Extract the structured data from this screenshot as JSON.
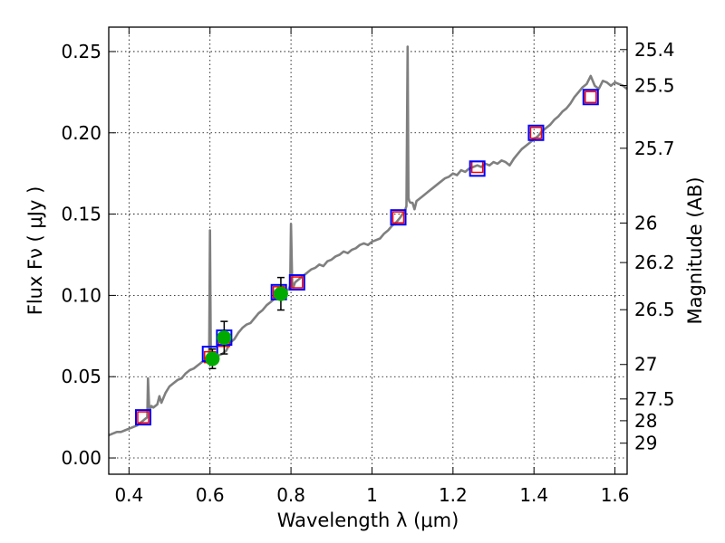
{
  "chart_data": {
    "type": "line",
    "xlabel": "Wavelength  λ (μm)",
    "ylabel": "Flux  Fν ( μJy )",
    "y2label": "Magnitude (AB)",
    "xlim": [
      0.35,
      1.63
    ],
    "ylim": [
      -0.01,
      0.265
    ],
    "grid": true,
    "x_ticks": [
      0.4,
      0.6,
      0.8,
      1.0,
      1.2,
      1.4,
      1.6
    ],
    "x_tick_labels": [
      "0.4",
      "0.6",
      "0.8",
      "1",
      "1.2",
      "1.4",
      "1.6"
    ],
    "y_ticks": [
      0.0,
      0.05,
      0.1,
      0.15,
      0.2,
      0.25
    ],
    "y_tick_labels": [
      "0.00",
      "0.05",
      "0.10",
      "0.15",
      "0.20",
      "0.25"
    ],
    "y2_ticks": [
      {
        "label": "25.4",
        "flux": 0.2512
      },
      {
        "label": "25.5",
        "flux": 0.2291
      },
      {
        "label": "25.7",
        "flux": 0.1905
      },
      {
        "label": "26",
        "flux": 0.1445
      },
      {
        "label": "26.2",
        "flux": 0.1202
      },
      {
        "label": "26.5",
        "flux": 0.0912
      },
      {
        "label": "27",
        "flux": 0.0575
      },
      {
        "label": "27.5",
        "flux": 0.0363
      },
      {
        "label": "28",
        "flux": 0.0229
      },
      {
        "label": "29",
        "flux": 0.0091
      }
    ],
    "series": [
      {
        "style": "model-spectrum",
        "color": "#7f7f7f",
        "x": [
          0.35,
          0.36,
          0.37,
          0.38,
          0.39,
          0.4,
          0.41,
          0.42,
          0.425,
          0.43,
          0.435,
          0.44,
          0.445,
          0.447,
          0.45,
          0.455,
          0.46,
          0.47,
          0.475,
          0.48,
          0.49,
          0.5,
          0.51,
          0.52,
          0.53,
          0.54,
          0.55,
          0.56,
          0.57,
          0.58,
          0.59,
          0.595,
          0.598,
          0.6,
          0.602,
          0.605,
          0.61,
          0.62,
          0.63,
          0.64,
          0.65,
          0.66,
          0.67,
          0.68,
          0.69,
          0.7,
          0.71,
          0.72,
          0.73,
          0.74,
          0.75,
          0.76,
          0.77,
          0.78,
          0.79,
          0.795,
          0.798,
          0.8,
          0.803,
          0.806,
          0.81,
          0.82,
          0.83,
          0.84,
          0.85,
          0.86,
          0.87,
          0.88,
          0.89,
          0.9,
          0.91,
          0.92,
          0.93,
          0.94,
          0.95,
          0.96,
          0.97,
          0.98,
          0.99,
          1.0,
          1.01,
          1.02,
          1.03,
          1.04,
          1.05,
          1.06,
          1.07,
          1.075,
          1.08,
          1.085,
          1.088,
          1.09,
          1.092,
          1.095,
          1.1,
          1.105,
          1.11,
          1.12,
          1.13,
          1.14,
          1.15,
          1.16,
          1.17,
          1.18,
          1.19,
          1.2,
          1.21,
          1.22,
          1.23,
          1.24,
          1.25,
          1.26,
          1.27,
          1.28,
          1.29,
          1.3,
          1.31,
          1.32,
          1.33,
          1.34,
          1.35,
          1.36,
          1.37,
          1.38,
          1.39,
          1.4,
          1.41,
          1.42,
          1.43,
          1.44,
          1.45,
          1.46,
          1.47,
          1.48,
          1.49,
          1.5,
          1.51,
          1.52,
          1.53,
          1.54,
          1.55,
          1.56,
          1.57,
          1.58,
          1.59,
          1.6,
          1.61,
          1.62,
          1.63
        ],
        "values": [
          0.014,
          0.015,
          0.016,
          0.016,
          0.017,
          0.018,
          0.019,
          0.02,
          0.021,
          0.022,
          0.023,
          0.024,
          0.025,
          0.049,
          0.029,
          0.032,
          0.031,
          0.033,
          0.038,
          0.034,
          0.04,
          0.044,
          0.046,
          0.048,
          0.049,
          0.052,
          0.054,
          0.055,
          0.057,
          0.059,
          0.06,
          0.061,
          0.063,
          0.14,
          0.064,
          0.062,
          0.062,
          0.063,
          0.064,
          0.066,
          0.071,
          0.073,
          0.077,
          0.08,
          0.082,
          0.083,
          0.086,
          0.089,
          0.091,
          0.094,
          0.096,
          0.098,
          0.1,
          0.102,
          0.103,
          0.104,
          0.106,
          0.144,
          0.108,
          0.105,
          0.108,
          0.11,
          0.112,
          0.114,
          0.116,
          0.117,
          0.119,
          0.118,
          0.121,
          0.122,
          0.124,
          0.125,
          0.127,
          0.126,
          0.128,
          0.129,
          0.131,
          0.132,
          0.131,
          0.133,
          0.134,
          0.135,
          0.138,
          0.14,
          0.143,
          0.145,
          0.148,
          0.15,
          0.151,
          0.155,
          0.253,
          0.16,
          0.158,
          0.157,
          0.157,
          0.153,
          0.158,
          0.16,
          0.162,
          0.164,
          0.166,
          0.168,
          0.17,
          0.172,
          0.173,
          0.175,
          0.174,
          0.177,
          0.176,
          0.178,
          0.179,
          0.18,
          0.179,
          0.181,
          0.18,
          0.182,
          0.181,
          0.183,
          0.182,
          0.18,
          0.184,
          0.187,
          0.19,
          0.192,
          0.194,
          0.196,
          0.198,
          0.201,
          0.203,
          0.205,
          0.208,
          0.21,
          0.213,
          0.215,
          0.218,
          0.222,
          0.225,
          0.228,
          0.23,
          0.235,
          0.229,
          0.227,
          0.232,
          0.231,
          0.229,
          0.231,
          0.23,
          0.229,
          0.227
        ]
      },
      {
        "style": "model-photometry",
        "color": "#ff0000",
        "x": [
          0.435,
          0.6,
          0.635,
          0.77,
          0.815,
          1.065,
          1.26,
          1.405,
          1.54
        ],
        "values": [
          0.025,
          0.062,
          0.072,
          0.102,
          0.108,
          0.148,
          0.179,
          0.2,
          0.222
        ]
      },
      {
        "style": "observed-bandpass-flux",
        "color": "#0000ff",
        "x": [
          0.435,
          0.6,
          0.635,
          0.77,
          0.815,
          1.065,
          1.26,
          1.405,
          1.54
        ],
        "values": [
          0.025,
          0.064,
          0.074,
          0.102,
          0.108,
          0.148,
          0.178,
          0.2,
          0.222
        ]
      },
      {
        "style": "observed-points",
        "color": "#00aa00",
        "x": [
          0.606,
          0.635,
          0.775
        ],
        "values": [
          0.061,
          0.074,
          0.101
        ],
        "yerr": [
          0.006,
          0.01,
          0.01
        ]
      }
    ]
  }
}
